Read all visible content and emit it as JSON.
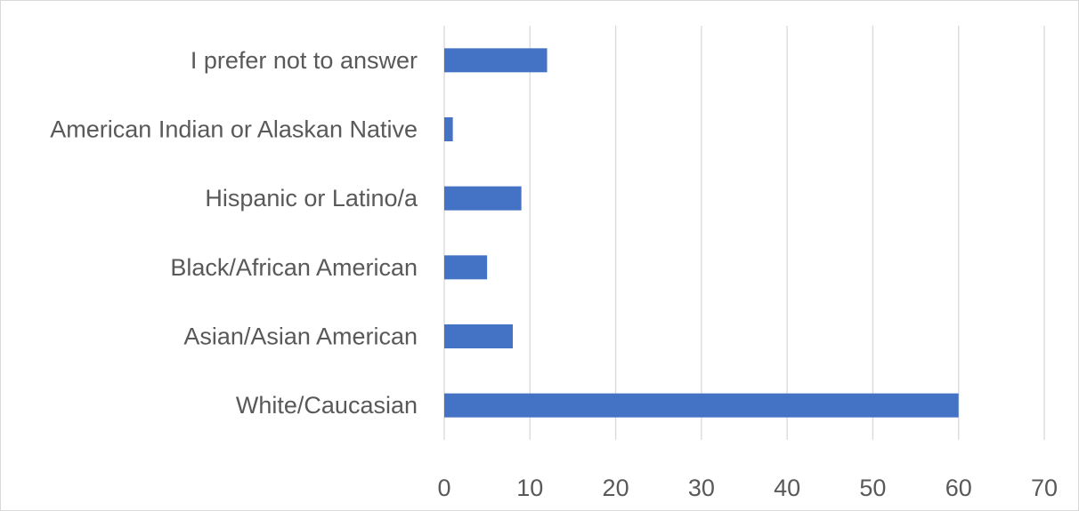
{
  "chart_data": {
    "type": "bar",
    "orientation": "horizontal",
    "categories": [
      "I prefer not to answer",
      "American Indian or Alaskan Native",
      "Hispanic or Latino/a",
      "Black/African American",
      "Asian/Asian American",
      "White/Caucasian"
    ],
    "values": [
      12,
      1,
      9,
      5,
      8,
      60
    ],
    "title": "",
    "xlabel": "",
    "ylabel": "",
    "xlim": [
      0,
      70
    ],
    "ticks": [
      0,
      10,
      20,
      30,
      40,
      50,
      60,
      70
    ],
    "grid": "vertical",
    "legend": "none",
    "bar_color": "#4472c4",
    "grid_color": "#d9d9d9",
    "text_color": "#595959"
  }
}
